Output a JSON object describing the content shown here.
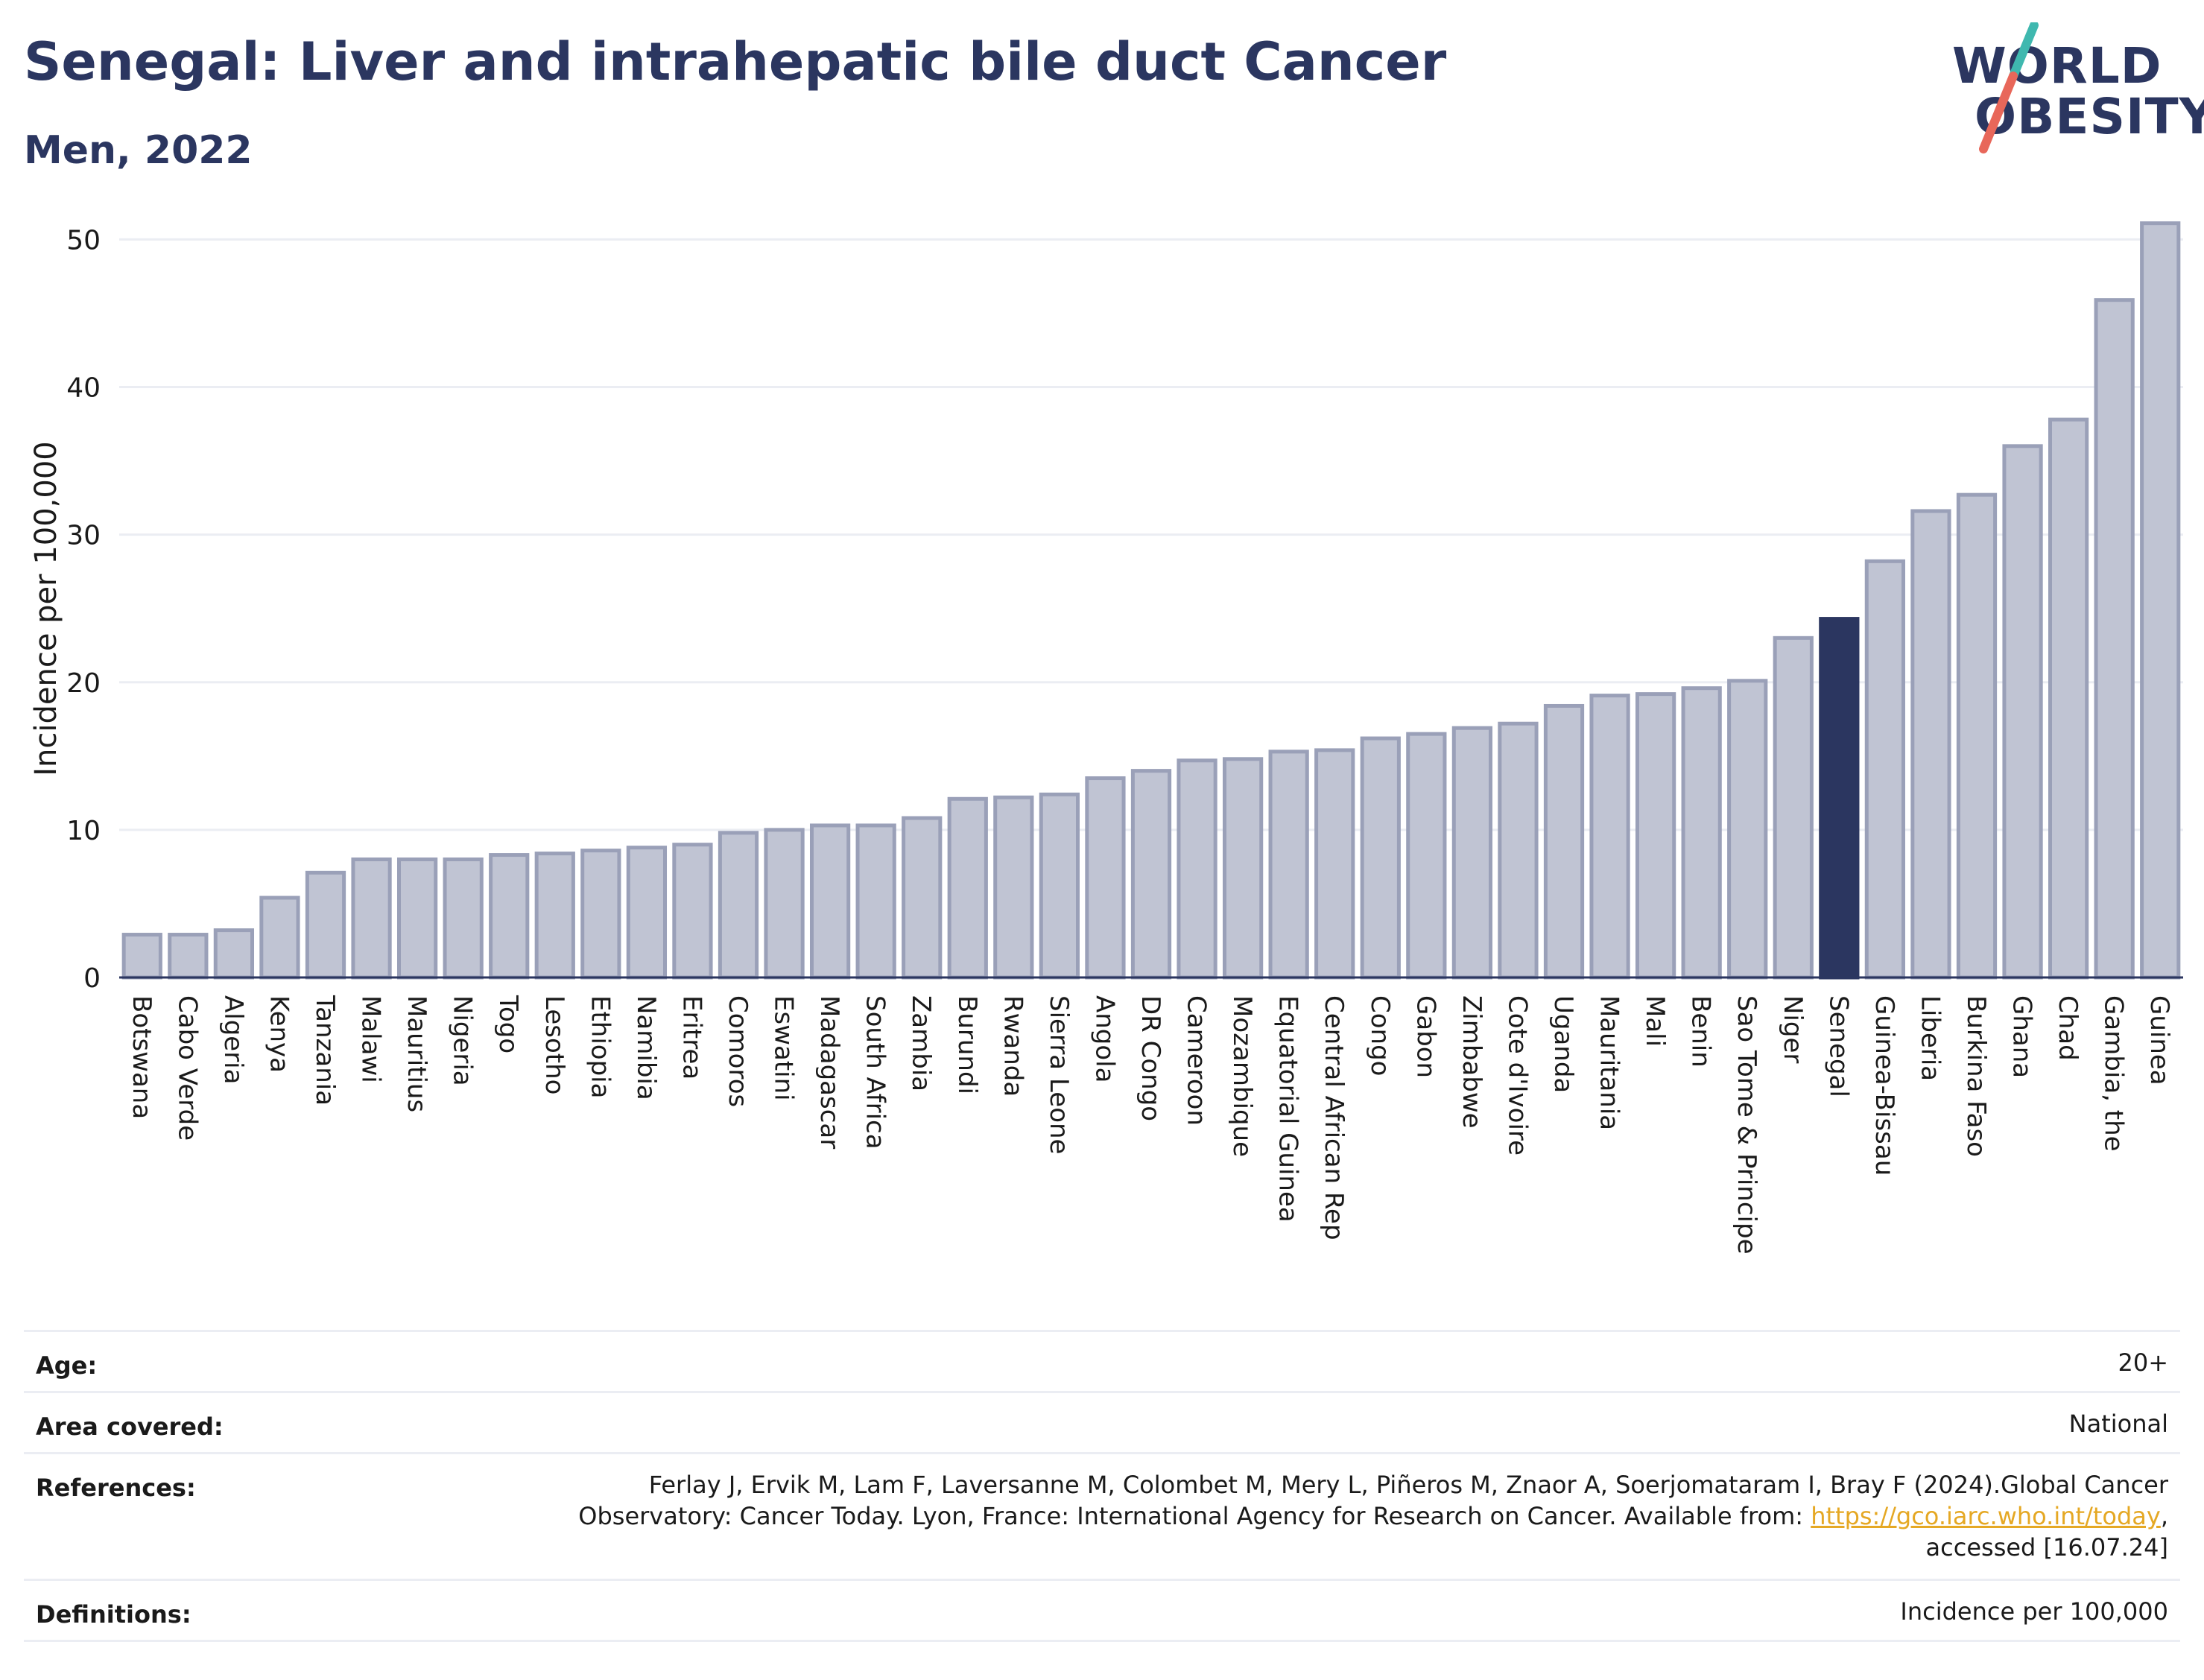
{
  "header": {
    "title": "Senegal: Liver and intrahepatic bile duct Cancer",
    "subtitle": "Men, 2022"
  },
  "logo": {
    "line1": "WORLD",
    "line2": "OBESITY",
    "colors": {
      "text": "#2b3660",
      "slash_top": "#3fb8af",
      "slash_bottom": "#e8675a"
    }
  },
  "colors": {
    "bar_fill": "#c0c4d3",
    "bar_stroke": "#9aa0b8",
    "highlight_fill": "#2b3660",
    "grid": "#ebedf3",
    "axis": "#2b3660"
  },
  "chart_data": {
    "type": "bar",
    "ylabel": "Incidence per 100,000",
    "ylim": [
      0,
      53
    ],
    "yticks": [
      0,
      10,
      20,
      30,
      40,
      50
    ],
    "grid": true,
    "highlight": "Senegal",
    "categories": [
      "Botswana",
      "Cabo Verde",
      "Algeria",
      "Kenya",
      "Tanzania",
      "Malawi",
      "Mauritius",
      "Nigeria",
      "Togo",
      "Lesotho",
      "Ethiopia",
      "Namibia",
      "Eritrea",
      "Comoros",
      "Eswatini",
      "Madagascar",
      "South Africa",
      "Zambia",
      "Burundi",
      "Rwanda",
      "Sierra Leone",
      "Angola",
      "DR Congo",
      "Cameroon",
      "Mozambique",
      "Equatorial Guinea",
      "Central African Rep",
      "Congo",
      "Gabon",
      "Zimbabwe",
      "Cote d'Ivoire",
      "Uganda",
      "Mauritania",
      "Mali",
      "Benin",
      "Sao Tome & Principe",
      "Niger",
      "Senegal",
      "Guinea-Bissau",
      "Liberia",
      "Burkina Faso",
      "Ghana",
      "Chad",
      "Gambia, the",
      "Guinea"
    ],
    "values": [
      2.9,
      2.9,
      3.2,
      5.4,
      7.1,
      8.0,
      8.0,
      8.0,
      8.3,
      8.4,
      8.6,
      8.8,
      9.0,
      9.8,
      10.0,
      10.3,
      10.3,
      10.8,
      12.1,
      12.2,
      12.4,
      13.5,
      14.0,
      14.7,
      14.8,
      15.3,
      15.4,
      16.2,
      16.5,
      16.9,
      17.2,
      18.4,
      19.1,
      19.2,
      19.6,
      20.1,
      23.0,
      24.3,
      28.2,
      31.6,
      32.7,
      36.0,
      37.8,
      45.9,
      51.1
    ]
  },
  "meta": {
    "age_label": "Age:",
    "age_value": "20+",
    "area_label": "Area covered:",
    "area_value": "National",
    "references_label": "References:",
    "references_line1": "Ferlay J, Ervik M, Lam F, Laversanne M, Colombet M, Mery L, Piñeros M, Znaor A, Soerjomataram I, Bray F (2024).Global Cancer",
    "references_line2_pre": "Observatory: Cancer Today. Lyon, France: International Agency for Research on Cancer. Available from: ",
    "references_link": "https://gco.iarc.who.int/today",
    "references_line2_post": ",",
    "references_line3": "accessed [16.07.24]",
    "definitions_label": "Definitions:",
    "definitions_value": "Incidence per 100,000"
  }
}
